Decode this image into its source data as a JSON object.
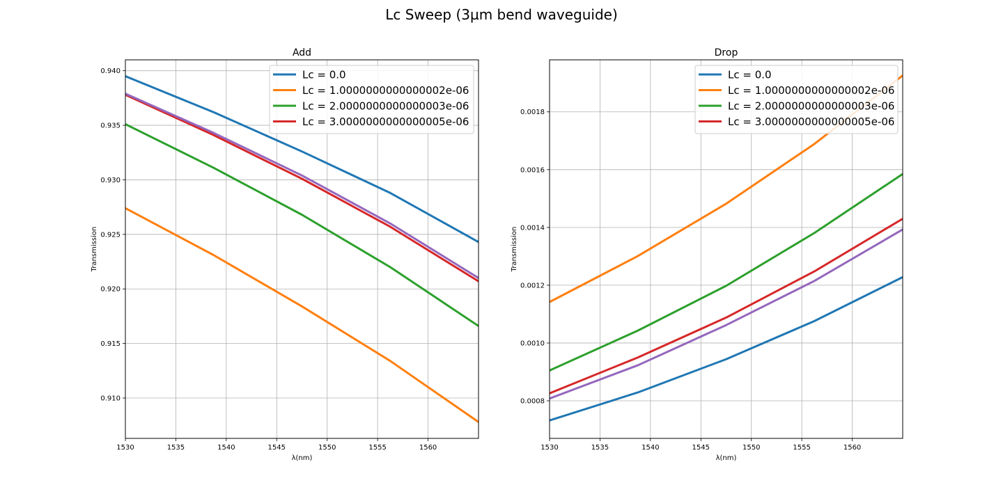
{
  "figure": {
    "title": "Lc Sweep (3µm bend waveguide)"
  },
  "chart_data": [
    {
      "type": "line",
      "title": "Add",
      "xlabel": "λ(nm)",
      "ylabel": "Transmission",
      "xlim": [
        1530,
        1565
      ],
      "ylim": [
        0.9063,
        0.941
      ],
      "xticks": [
        1530,
        1535,
        1540,
        1545,
        1550,
        1555,
        1560
      ],
      "xtick_labels": [
        "1530",
        "1535",
        "1540",
        "1545",
        "1550",
        "1555",
        "1560"
      ],
      "yticks": [
        0.91,
        0.915,
        0.92,
        0.925,
        0.93,
        0.935,
        0.94
      ],
      "ytick_labels": [
        "0.910",
        "0.915",
        "0.920",
        "0.925",
        "0.930",
        "0.935",
        "0.940"
      ],
      "grid": true,
      "legend_position": "upper right",
      "x": [
        1530,
        1538.75,
        1547.5,
        1556.25,
        1565
      ],
      "series": [
        {
          "name": "Lc = 0.0",
          "color": "#1f77b4",
          "values": [
            0.9395,
            0.9362,
            0.9326,
            0.9288,
            0.9243
          ]
        },
        {
          "name": "Lc = 1.0000000000000002e-06",
          "color": "#ff7f0e",
          "values": [
            0.9274,
            0.9231,
            0.9184,
            0.9134,
            0.9078
          ]
        },
        {
          "name": "Lc = 2.0000000000000003e-06",
          "color": "#2ca02c",
          "values": [
            0.9351,
            0.9311,
            0.9268,
            0.922,
            0.9166
          ]
        },
        {
          "name": "Lc = 3.0000000000000005e-06",
          "color": "#d62728",
          "values": [
            0.9378,
            0.9341,
            0.9301,
            0.9257,
            0.9207
          ]
        },
        {
          "color": "#9467bd",
          "values": [
            0.9379,
            0.9343,
            0.9304,
            0.926,
            0.921
          ]
        }
      ]
    },
    {
      "type": "line",
      "title": "Drop",
      "xlabel": "λ(nm)",
      "ylabel": "Transmission",
      "xlim": [
        1530,
        1565
      ],
      "ylim": [
        0.00067,
        0.00198
      ],
      "xticks": [
        1530,
        1535,
        1540,
        1545,
        1550,
        1555,
        1560
      ],
      "xtick_labels": [
        "1530",
        "1535",
        "1540",
        "1545",
        "1550",
        "1555",
        "1560"
      ],
      "yticks": [
        0.0008,
        0.001,
        0.0012,
        0.0014,
        0.0016,
        0.0018
      ],
      "ytick_labels": [
        "0.0008",
        "0.0010",
        "0.0012",
        "0.0014",
        "0.0016",
        "0.0018"
      ],
      "grid": true,
      "legend_position": "upper right",
      "x": [
        1530,
        1538.75,
        1547.5,
        1556.25,
        1565
      ],
      "series": [
        {
          "name": "Lc = 0.0",
          "color": "#1f77b4",
          "values": [
            0.000732,
            0.000829,
            0.000944,
            0.001076,
            0.001228
          ]
        },
        {
          "name": "Lc = 1.0000000000000002e-06",
          "color": "#ff7f0e",
          "values": [
            0.001142,
            0.001301,
            0.001482,
            0.001689,
            0.001926
          ]
        },
        {
          "name": "Lc = 2.0000000000000003e-06",
          "color": "#2ca02c",
          "values": [
            0.000905,
            0.001043,
            0.001198,
            0.001381,
            0.001585
          ]
        },
        {
          "name": "Lc = 3.0000000000000005e-06",
          "color": "#d62728",
          "values": [
            0.000826,
            0.00095,
            0.001088,
            0.001248,
            0.00143
          ]
        },
        {
          "color": "#9467bd",
          "values": [
            0.000808,
            0.000923,
            0.001062,
            0.001215,
            0.001393
          ]
        }
      ]
    }
  ]
}
